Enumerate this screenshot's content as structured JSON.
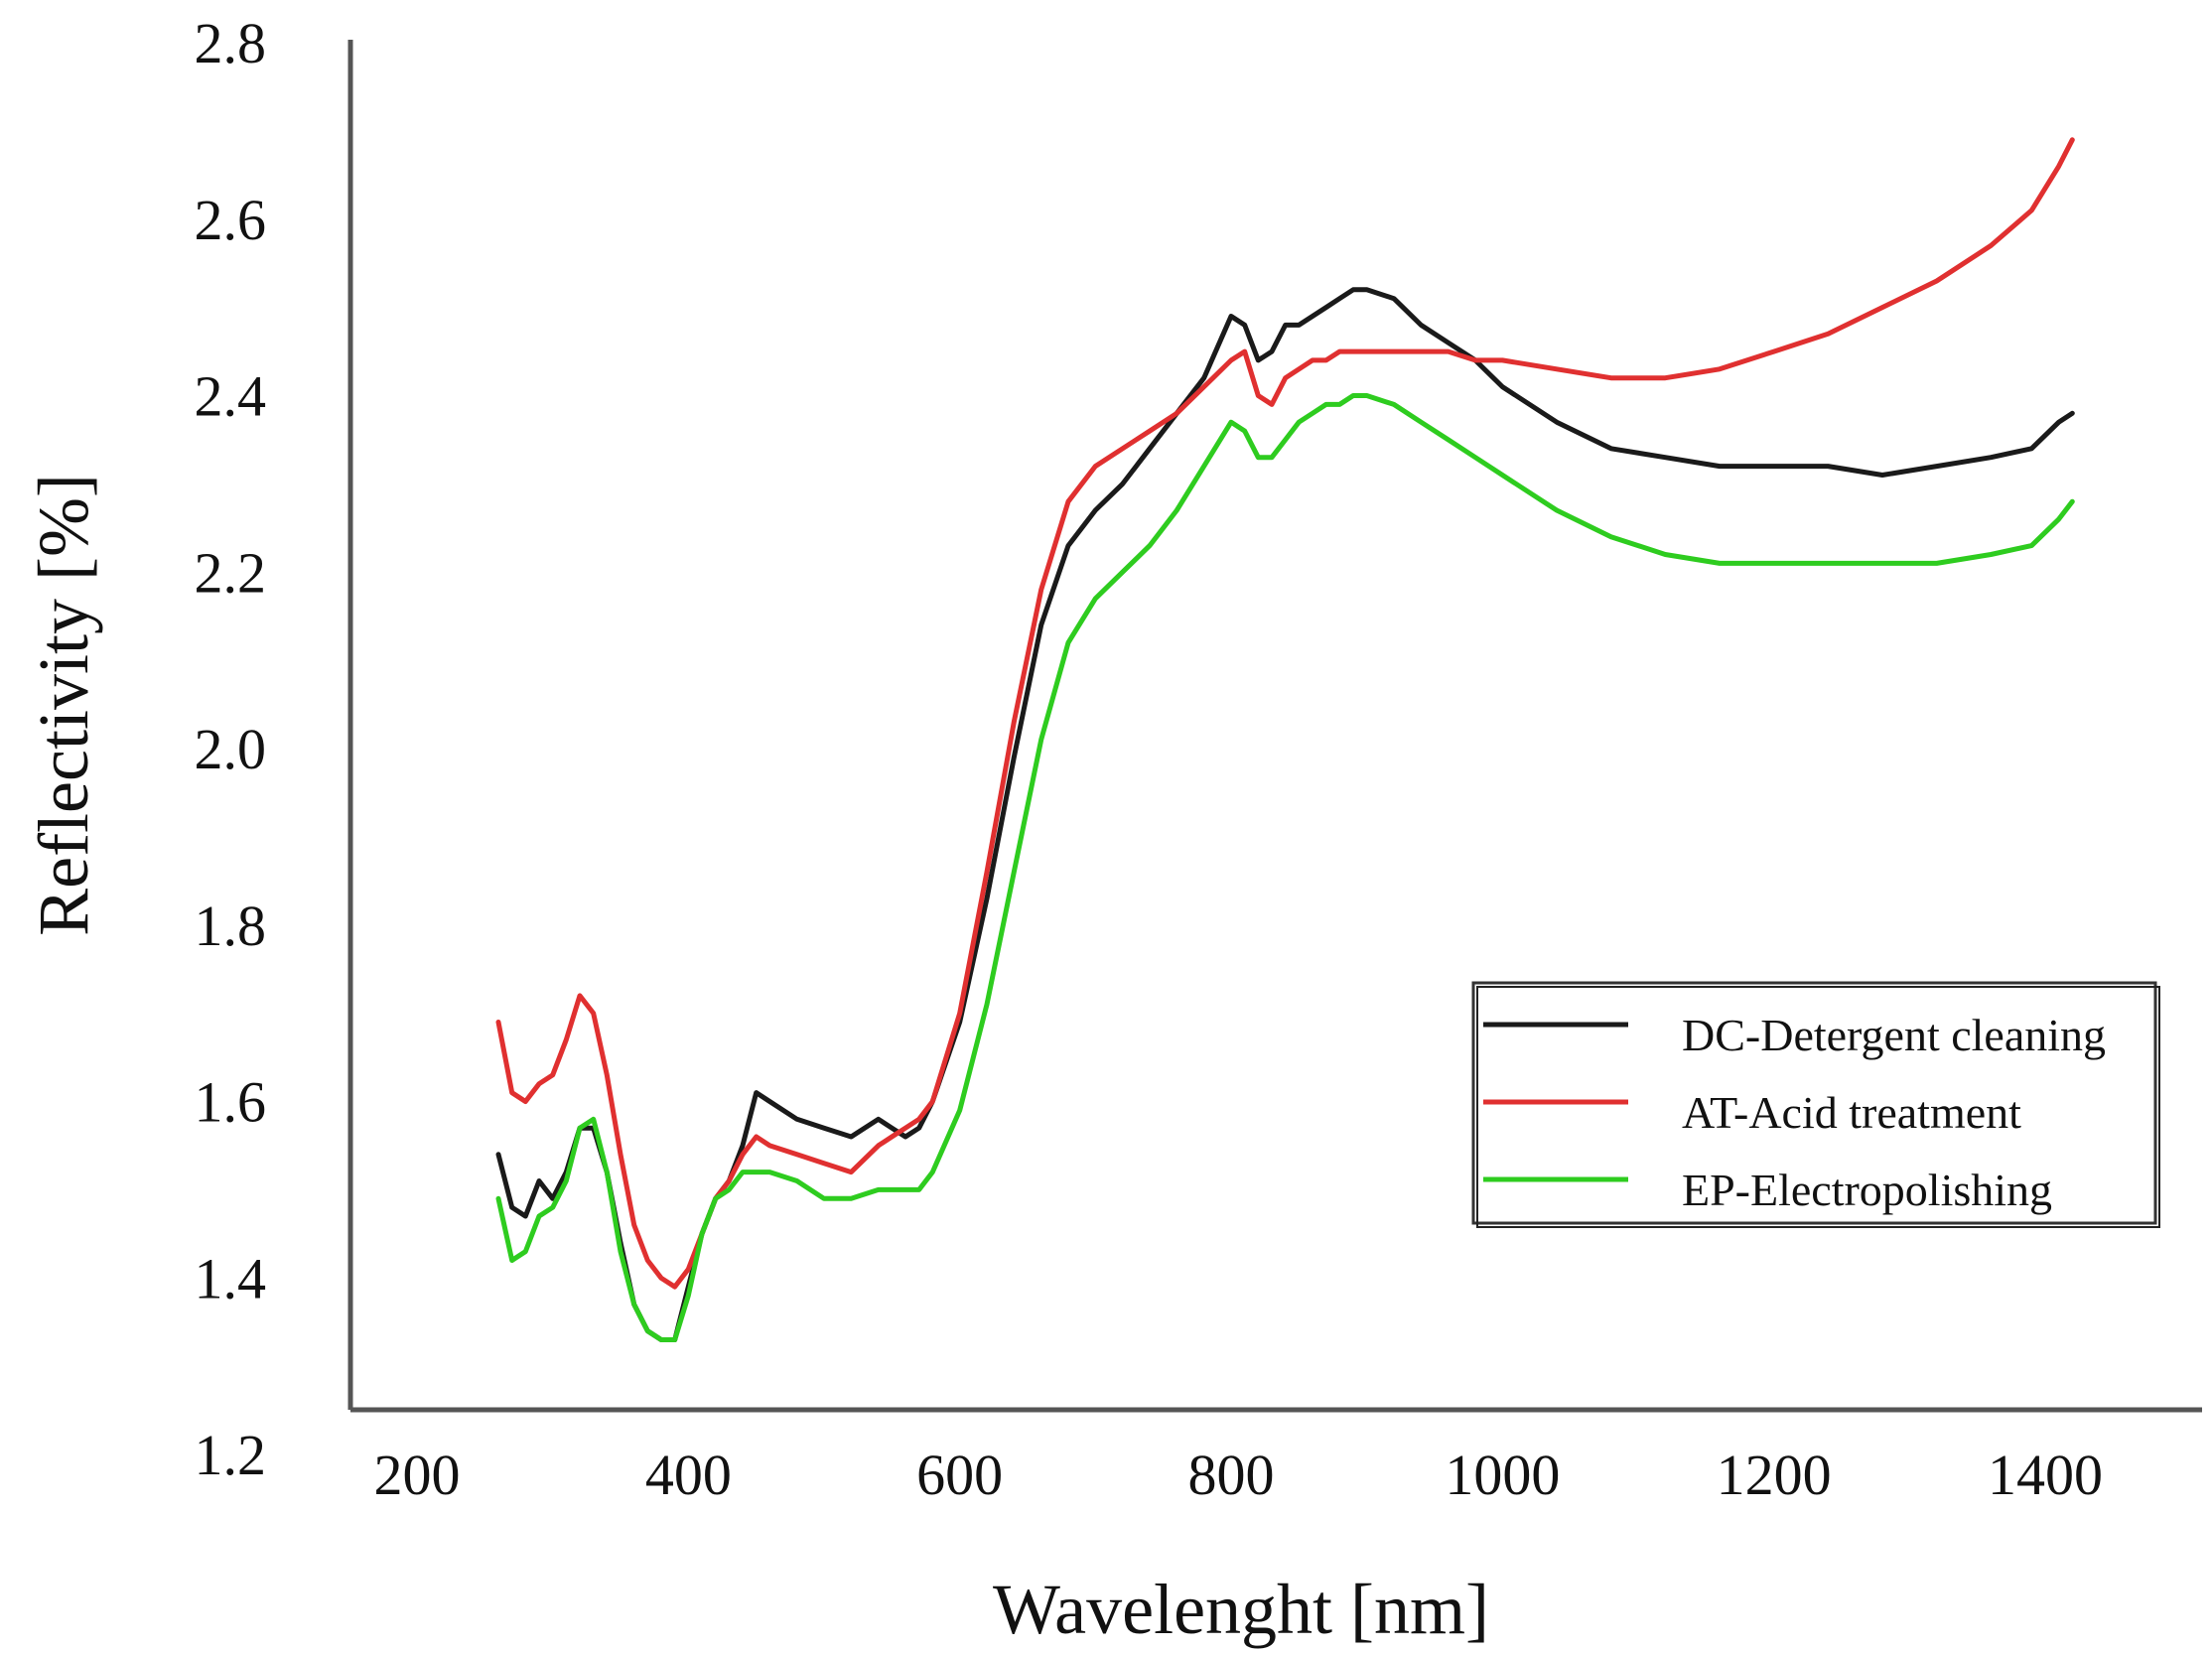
{
  "chart_data": {
    "type": "line",
    "title": "",
    "xlabel": "Wavelenght [nm]",
    "ylabel": "Reflectivity [%]",
    "xlim": [
      140,
      1520
    ],
    "ylim": [
      1.2,
      2.8
    ],
    "xticks": [
      200,
      400,
      600,
      800,
      1000,
      1200,
      1400
    ],
    "xtick_labels": [
      "200",
      "400",
      "600",
      "800",
      "1000",
      "1200",
      "1400"
    ],
    "yticks": [
      1.2,
      1.4,
      1.6,
      1.8,
      2.0,
      2.2,
      2.4,
      2.6,
      2.8
    ],
    "ytick_labels": [
      "1.2",
      "1.4",
      "1.6",
      "1.8",
      "2.0",
      "2.2",
      "2.4",
      "2.6",
      "2.8"
    ],
    "grid": false,
    "legend_position": "right",
    "series": [
      {
        "name": "DC-Detergent cleaning",
        "color": "#1a1a1a",
        "x": [
          260,
          270,
          280,
          290,
          300,
          310,
          320,
          330,
          340,
          350,
          360,
          370,
          380,
          390,
          400,
          410,
          420,
          430,
          440,
          450,
          460,
          480,
          500,
          520,
          540,
          550,
          560,
          570,
          580,
          600,
          620,
          640,
          660,
          680,
          700,
          720,
          740,
          760,
          780,
          800,
          810,
          820,
          830,
          840,
          850,
          860,
          870,
          880,
          890,
          900,
          920,
          940,
          960,
          980,
          1000,
          1040,
          1080,
          1120,
          1160,
          1200,
          1240,
          1280,
          1320,
          1360,
          1390,
          1410,
          1420
        ],
        "y": [
          1.54,
          1.48,
          1.47,
          1.51,
          1.49,
          1.52,
          1.57,
          1.57,
          1.52,
          1.44,
          1.37,
          1.34,
          1.33,
          1.33,
          1.39,
          1.45,
          1.49,
          1.51,
          1.55,
          1.61,
          1.6,
          1.58,
          1.57,
          1.56,
          1.58,
          1.57,
          1.56,
          1.57,
          1.6,
          1.69,
          1.83,
          1.99,
          2.14,
          2.23,
          2.27,
          2.3,
          2.34,
          2.38,
          2.42,
          2.49,
          2.48,
          2.44,
          2.45,
          2.48,
          2.48,
          2.49,
          2.5,
          2.51,
          2.52,
          2.52,
          2.51,
          2.48,
          2.46,
          2.44,
          2.41,
          2.37,
          2.34,
          2.33,
          2.32,
          2.32,
          2.32,
          2.31,
          2.32,
          2.33,
          2.34,
          2.37,
          2.38
        ]
      },
      {
        "name": "AT-Acid treatment",
        "color": "#e03030",
        "x": [
          260,
          270,
          280,
          290,
          300,
          310,
          320,
          330,
          340,
          350,
          360,
          370,
          380,
          390,
          400,
          410,
          420,
          430,
          440,
          450,
          460,
          480,
          500,
          520,
          540,
          550,
          560,
          570,
          580,
          600,
          620,
          640,
          660,
          680,
          700,
          720,
          740,
          760,
          780,
          800,
          810,
          820,
          830,
          840,
          850,
          860,
          870,
          880,
          890,
          900,
          920,
          940,
          960,
          980,
          1000,
          1040,
          1080,
          1120,
          1160,
          1200,
          1240,
          1280,
          1320,
          1360,
          1390,
          1410,
          1420
        ],
        "y": [
          1.69,
          1.61,
          1.6,
          1.62,
          1.63,
          1.67,
          1.72,
          1.7,
          1.63,
          1.54,
          1.46,
          1.42,
          1.4,
          1.39,
          1.41,
          1.45,
          1.49,
          1.51,
          1.54,
          1.56,
          1.55,
          1.54,
          1.53,
          1.52,
          1.55,
          1.56,
          1.57,
          1.58,
          1.6,
          1.7,
          1.86,
          2.03,
          2.18,
          2.28,
          2.32,
          2.34,
          2.36,
          2.38,
          2.41,
          2.44,
          2.45,
          2.4,
          2.39,
          2.42,
          2.43,
          2.44,
          2.44,
          2.45,
          2.45,
          2.45,
          2.45,
          2.45,
          2.45,
          2.44,
          2.44,
          2.43,
          2.42,
          2.42,
          2.43,
          2.45,
          2.47,
          2.5,
          2.53,
          2.57,
          2.61,
          2.66,
          2.69
        ]
      },
      {
        "name": "EP-Electropolishing",
        "color": "#2ecc1f",
        "x": [
          260,
          270,
          280,
          290,
          300,
          310,
          320,
          330,
          340,
          350,
          360,
          370,
          380,
          390,
          400,
          410,
          420,
          430,
          440,
          450,
          460,
          480,
          500,
          520,
          540,
          550,
          560,
          570,
          580,
          600,
          620,
          640,
          660,
          680,
          700,
          720,
          740,
          760,
          780,
          800,
          810,
          820,
          830,
          840,
          850,
          860,
          870,
          880,
          890,
          900,
          920,
          940,
          960,
          980,
          1000,
          1040,
          1080,
          1120,
          1160,
          1200,
          1240,
          1280,
          1320,
          1360,
          1390,
          1410,
          1420
        ],
        "y": [
          1.49,
          1.42,
          1.43,
          1.47,
          1.48,
          1.51,
          1.57,
          1.58,
          1.52,
          1.43,
          1.37,
          1.34,
          1.33,
          1.33,
          1.38,
          1.45,
          1.49,
          1.5,
          1.52,
          1.52,
          1.52,
          1.51,
          1.49,
          1.49,
          1.5,
          1.5,
          1.5,
          1.5,
          1.52,
          1.59,
          1.71,
          1.86,
          2.01,
          2.12,
          2.17,
          2.2,
          2.23,
          2.27,
          2.32,
          2.37,
          2.36,
          2.33,
          2.33,
          2.35,
          2.37,
          2.38,
          2.39,
          2.39,
          2.4,
          2.4,
          2.39,
          2.37,
          2.35,
          2.33,
          2.31,
          2.27,
          2.24,
          2.22,
          2.21,
          2.21,
          2.21,
          2.21,
          2.21,
          2.22,
          2.23,
          2.26,
          2.28
        ]
      }
    ]
  }
}
